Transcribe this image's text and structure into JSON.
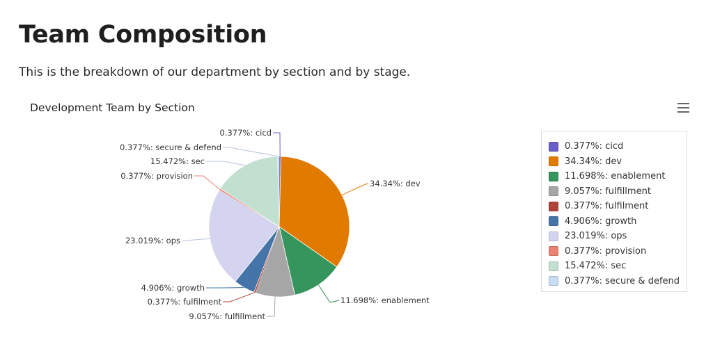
{
  "page": {
    "title": "Team Composition",
    "description": "This is the breakdown of our department by section and by stage."
  },
  "chart_data": {
    "type": "pie",
    "title": "Development Team by Section",
    "legend_position": "right",
    "slices": [
      {
        "label": "0.377%: cicd",
        "name": "cicd",
        "value": 0.377,
        "color": "#6a5fc8"
      },
      {
        "label": "34.34%: dev",
        "name": "dev",
        "value": 34.34,
        "color": "#e07b00"
      },
      {
        "label": "11.698%: enablement",
        "name": "enablement",
        "value": 11.698,
        "color": "#36955c"
      },
      {
        "label": "9.057%: fulfillment",
        "name": "fulfillment",
        "value": 9.057,
        "color": "#a6a6a6"
      },
      {
        "label": "0.377%: fulfilment",
        "name": "fulfilment",
        "value": 0.377,
        "color": "#b0433a"
      },
      {
        "label": "4.906%: growth",
        "name": "growth",
        "value": 4.906,
        "color": "#4474a8"
      },
      {
        "label": "23.019%: ops",
        "name": "ops",
        "value": 23.019,
        "color": "#d4d4f0"
      },
      {
        "label": "0.377%: provision",
        "name": "provision",
        "value": 0.377,
        "color": "#ea8373"
      },
      {
        "label": "15.472%: sec",
        "name": "sec",
        "value": 15.472,
        "color": "#c2e0d0"
      },
      {
        "label": "0.377%: secure & defend",
        "name": "secure-and-defend",
        "value": 0.377,
        "color": "#c6dcf0"
      }
    ]
  }
}
